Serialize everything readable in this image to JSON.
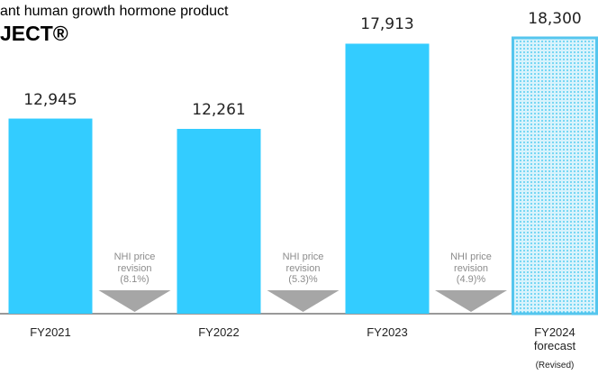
{
  "chart_data": {
    "type": "bar",
    "subtitle": "ant human growth hormone product",
    "title": "JECT®",
    "categories": [
      "FY2021",
      "FY2022",
      "FY2023",
      "FY2024\nforecast"
    ],
    "category_note": "(Revised)",
    "values": [
      12945,
      12261,
      17913,
      18300
    ],
    "value_labels": [
      "12,945",
      "12,261",
      "17,913",
      "18,300"
    ],
    "color": "#33ccff",
    "hatched": [
      false,
      false,
      false,
      true
    ],
    "annotations": [
      "NHI price\nrevision\n(8.1%)",
      "NHI price\nrevision\n(5.3)%",
      "NHI price\nrevision\n(4.9)%"
    ]
  }
}
